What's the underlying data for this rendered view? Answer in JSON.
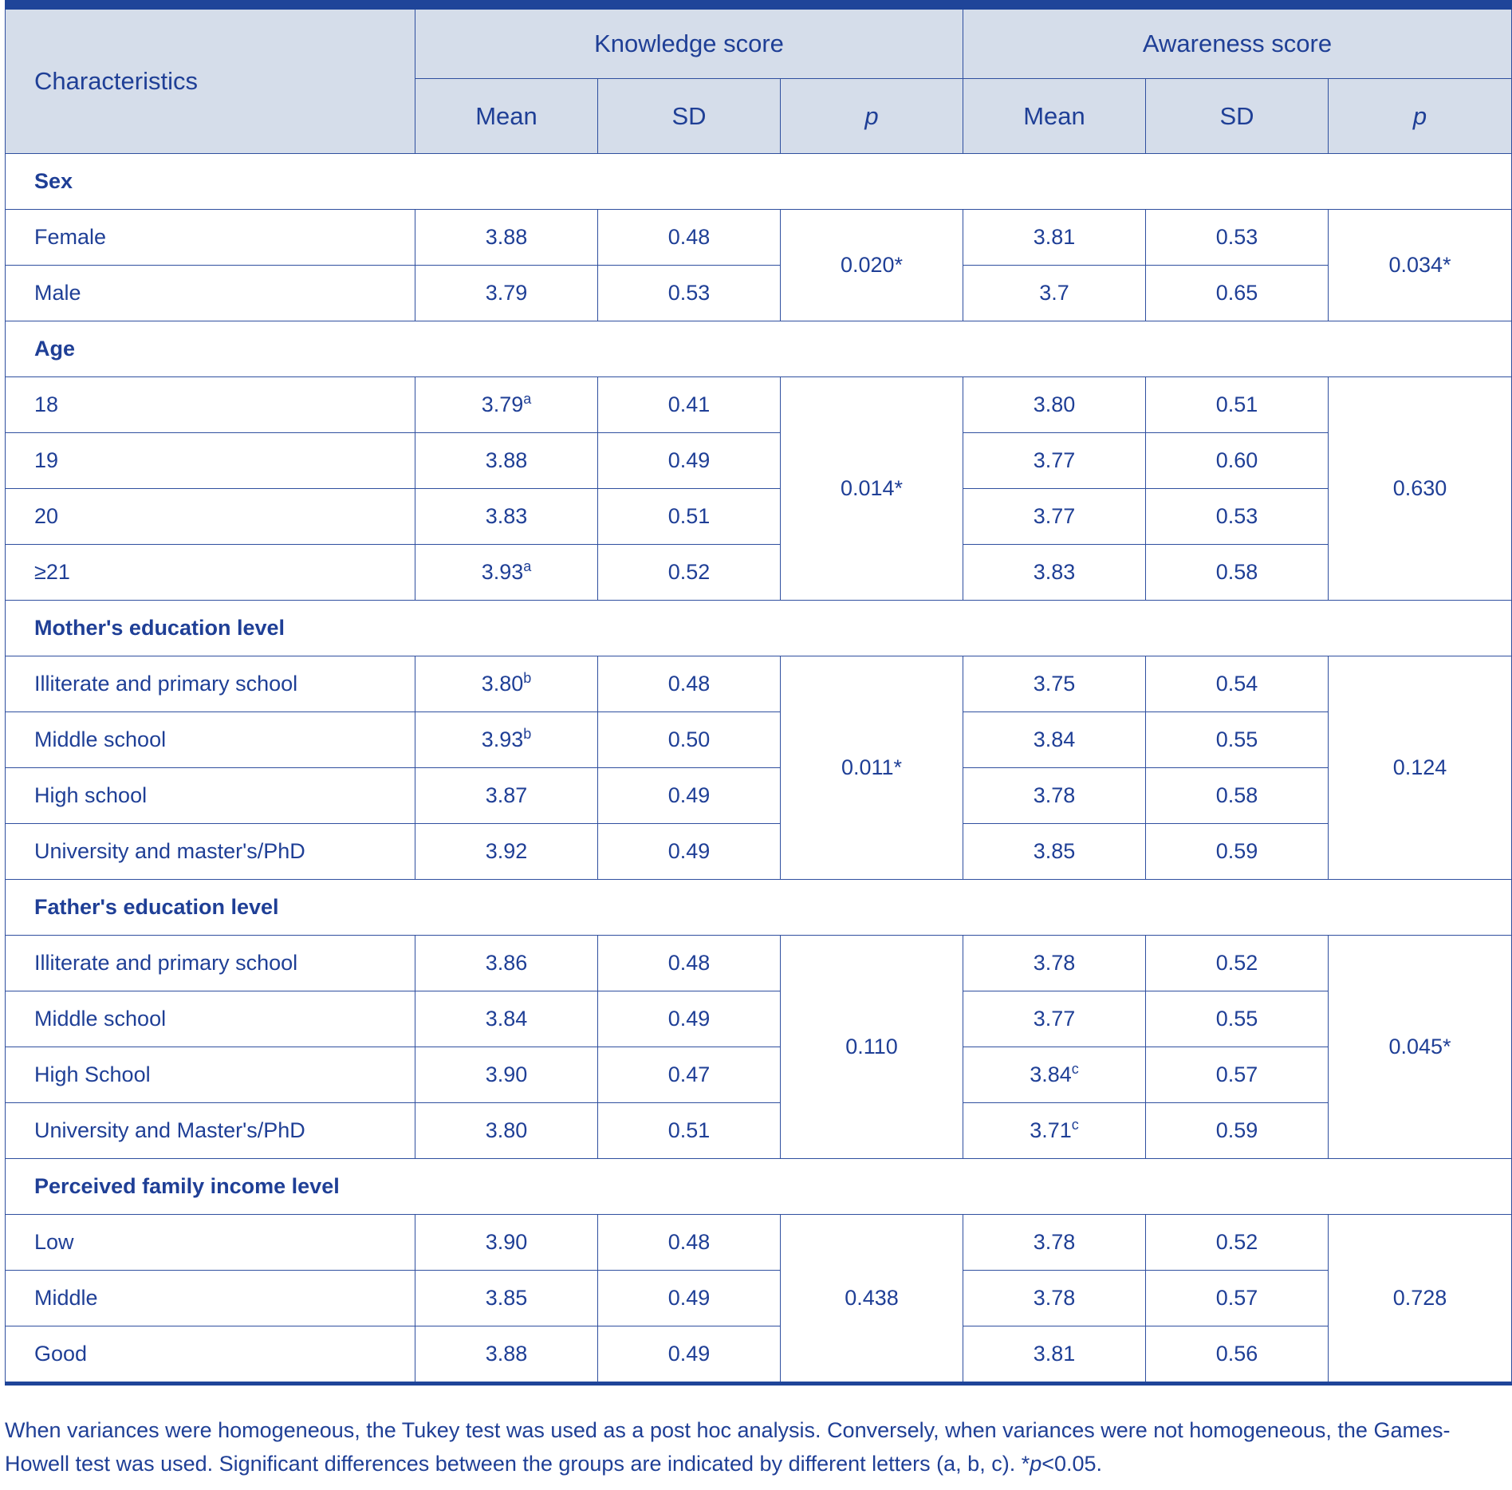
{
  "header": {
    "characteristics": "Characteristics",
    "knowledge": "Knowledge score",
    "awareness": "Awareness score",
    "mean": "Mean",
    "sd": "SD",
    "p": "p"
  },
  "groups": [
    {
      "title": "Sex",
      "k_p": "0.020*",
      "a_p": "0.034*",
      "rows": [
        {
          "label": "Female",
          "k_mean": "3.88",
          "k_sup": "",
          "k_sd": "0.48",
          "a_mean": "3.81",
          "a_sup": "",
          "a_sd": "0.53"
        },
        {
          "label": "Male",
          "k_mean": "3.79",
          "k_sup": "",
          "k_sd": "0.53",
          "a_mean": "3.7",
          "a_sup": "",
          "a_sd": "0.65"
        }
      ]
    },
    {
      "title": "Age",
      "k_p": "0.014*",
      "a_p": "0.630",
      "rows": [
        {
          "label": "18",
          "k_mean": "3.79",
          "k_sup": "a",
          "k_sd": "0.41",
          "a_mean": "3.80",
          "a_sup": "",
          "a_sd": "0.51"
        },
        {
          "label": "19",
          "k_mean": "3.88",
          "k_sup": "",
          "k_sd": "0.49",
          "a_mean": "3.77",
          "a_sup": "",
          "a_sd": "0.60"
        },
        {
          "label": "20",
          "k_mean": "3.83",
          "k_sup": "",
          "k_sd": "0.51",
          "a_mean": "3.77",
          "a_sup": "",
          "a_sd": "0.53"
        },
        {
          "label": "≥21",
          "k_mean": "3.93",
          "k_sup": "a",
          "k_sd": "0.52",
          "a_mean": "3.83",
          "a_sup": "",
          "a_sd": "0.58"
        }
      ]
    },
    {
      "title": "Mother's education level",
      "k_p": "0.011*",
      "a_p": "0.124",
      "rows": [
        {
          "label": "Illiterate and primary school",
          "k_mean": "3.80",
          "k_sup": "b",
          "k_sd": "0.48",
          "a_mean": "3.75",
          "a_sup": "",
          "a_sd": "0.54"
        },
        {
          "label": "Middle school",
          "k_mean": "3.93",
          "k_sup": "b",
          "k_sd": "0.50",
          "a_mean": "3.84",
          "a_sup": "",
          "a_sd": "0.55"
        },
        {
          "label": "High school",
          "k_mean": "3.87",
          "k_sup": "",
          "k_sd": "0.49",
          "a_mean": "3.78",
          "a_sup": "",
          "a_sd": "0.58"
        },
        {
          "label": "University and master's/PhD",
          "k_mean": "3.92",
          "k_sup": "",
          "k_sd": "0.49",
          "a_mean": "3.85",
          "a_sup": "",
          "a_sd": "0.59"
        }
      ]
    },
    {
      "title": "Father's education level",
      "k_p": "0.110",
      "a_p": "0.045*",
      "rows": [
        {
          "label": "Illiterate and primary school",
          "k_mean": "3.86",
          "k_sup": "",
          "k_sd": "0.48",
          "a_mean": "3.78",
          "a_sup": "",
          "a_sd": "0.52"
        },
        {
          "label": "Middle school",
          "k_mean": "3.84",
          "k_sup": "",
          "k_sd": "0.49",
          "a_mean": "3.77",
          "a_sup": "",
          "a_sd": "0.55"
        },
        {
          "label": "High School",
          "k_mean": "3.90",
          "k_sup": "",
          "k_sd": "0.47",
          "a_mean": "3.84",
          "a_sup": "c",
          "a_sd": "0.57"
        },
        {
          "label": "University and Master's/PhD",
          "k_mean": "3.80",
          "k_sup": "",
          "k_sd": "0.51",
          "a_mean": "3.71",
          "a_sup": "c",
          "a_sd": "0.59"
        }
      ]
    },
    {
      "title": "Perceived family income level",
      "k_p": "0.438",
      "a_p": "0.728",
      "rows": [
        {
          "label": "Low",
          "k_mean": "3.90",
          "k_sup": "",
          "k_sd": "0.48",
          "a_mean": "3.78",
          "a_sup": "",
          "a_sd": "0.52"
        },
        {
          "label": "Middle",
          "k_mean": "3.85",
          "k_sup": "",
          "k_sd": "0.49",
          "a_mean": "3.78",
          "a_sup": "",
          "a_sd": "0.57"
        },
        {
          "label": "Good",
          "k_mean": "3.88",
          "k_sup": "",
          "k_sd": "0.49",
          "a_mean": "3.81",
          "a_sup": "",
          "a_sd": "0.56"
        }
      ]
    }
  ],
  "footnote": {
    "text": "When variances were homogeneous, the Tukey test was used as a post hoc analysis. Conversely, when variances were not homogeneous, the Games-Howell test was used. Significant differences between the groups are indicated by different letters (a, b, c). *",
    "p_italic": "p",
    "tail": "<0.05."
  },
  "colors": {
    "accent": "#1f4599",
    "header_bg": "#d5ddea",
    "text": "#1f3f96"
  }
}
